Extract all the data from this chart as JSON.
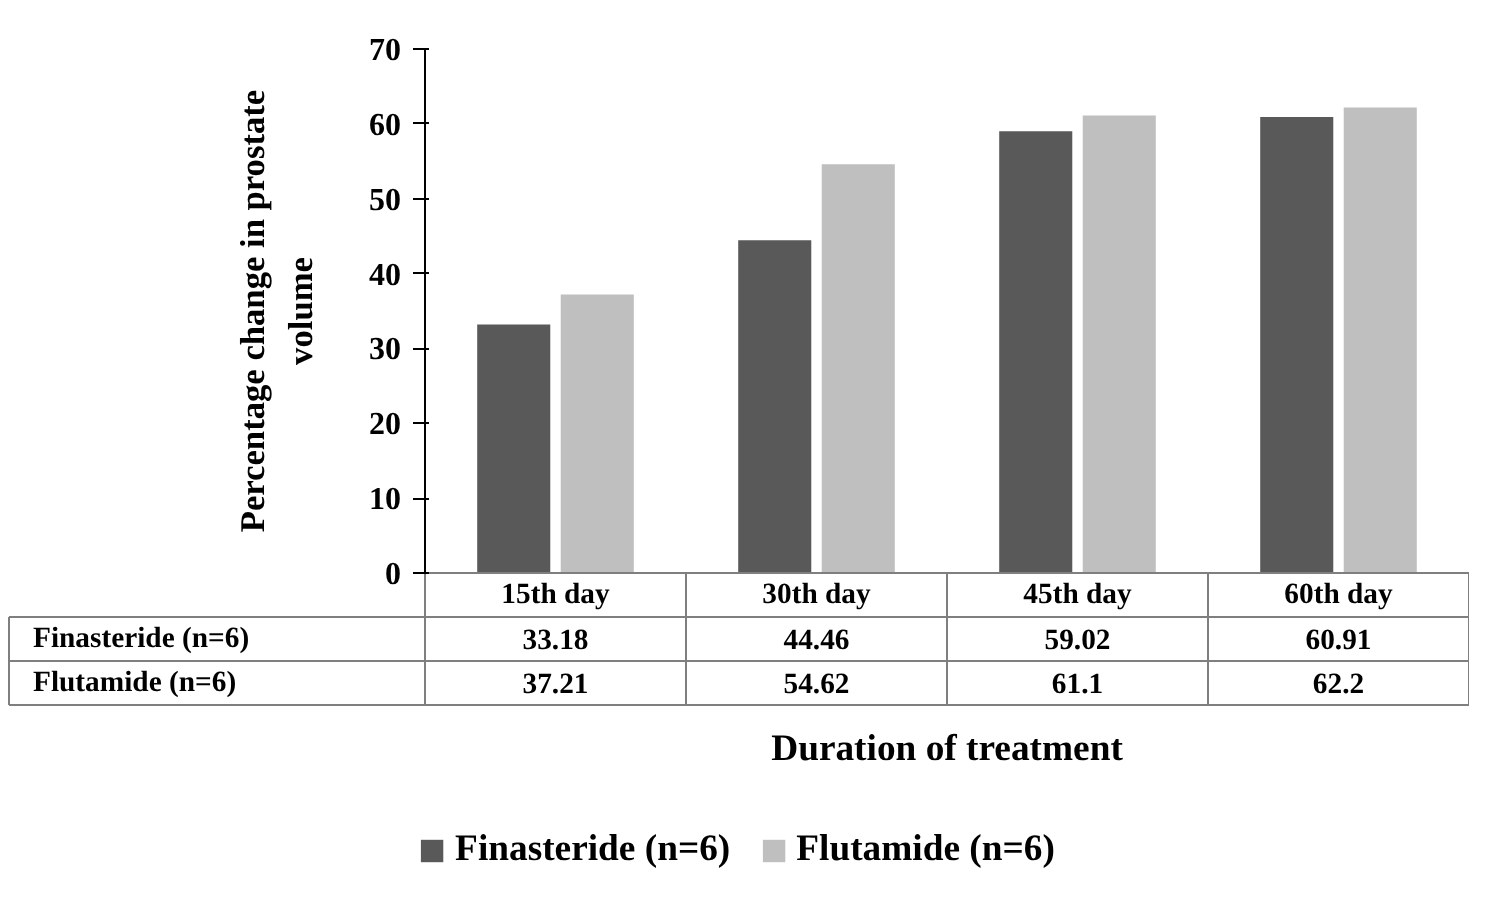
{
  "chart_data": {
    "type": "bar",
    "ylabel": "Percentage change in prostate volume",
    "xlabel": "Duration of treatment",
    "categories": [
      "15th day",
      "30th day",
      "45th day",
      "60th day"
    ],
    "series": [
      {
        "name": "Finasteride (n=6)",
        "color": "#595959",
        "values": [
          33.18,
          44.46,
          59.02,
          60.91
        ]
      },
      {
        "name": "Flutamide (n=6)",
        "color": "#bfbfbf",
        "values": [
          37.21,
          54.62,
          61.1,
          62.2
        ]
      }
    ],
    "ylim": [
      0,
      70
    ],
    "yticks": [
      0,
      10,
      20,
      30,
      40,
      50,
      60,
      70
    ],
    "grid": false,
    "legend": "bottom",
    "data_labels": true
  }
}
